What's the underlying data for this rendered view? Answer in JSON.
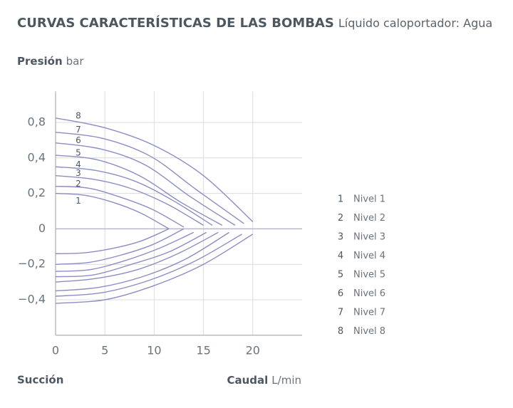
{
  "chart_data": {
    "type": "line",
    "title": "CURVAS CARACTERÍSTICAS DE LAS BOMBAS",
    "subtitle": "Líquido caloportador: Agua",
    "y_label": {
      "title": "Presión",
      "unit": "bar"
    },
    "x_label": {
      "title": "Caudal",
      "unit": "L/min"
    },
    "suction_label": "Succión",
    "xlim": [
      0,
      25
    ],
    "xticks": [
      0,
      5,
      10,
      15,
      20
    ],
    "ylim": [
      -0.6,
      1.15
    ],
    "yticks": [
      {
        "value": 0.8,
        "label": "0,8"
      },
      {
        "value": 0.4,
        "label": "0,4"
      },
      {
        "value": 0.2,
        "label": "0,2"
      },
      0,
      {
        "value": -0.2,
        "label": "−0,2"
      },
      {
        "value": -0.4,
        "label": "−0,4"
      }
    ],
    "grid": true,
    "legend": "right",
    "series": [
      {
        "name": "Nivel 1",
        "label": "1",
        "color": "#8b8ec4",
        "x": [
          0,
          2.9,
          5.8,
          8.6,
          11.5
        ],
        "values": [
          0.2,
          0.19,
          0.15,
          0.09,
          0
        ],
        "suction_x": [
          0,
          2.9,
          5.8,
          8.6,
          11.5
        ],
        "suction_values": [
          -0.14,
          -0.135,
          -0.11,
          -0.07,
          0
        ]
      },
      {
        "name": "Nivel 2",
        "label": "2",
        "color": "#8b8ec4",
        "x": [
          0,
          3.3,
          6.5,
          9.8,
          13
        ],
        "values": [
          0.24,
          0.23,
          0.18,
          0.11,
          0.01
        ],
        "suction_x": [
          0,
          3.3,
          6.5,
          9.8,
          13
        ],
        "suction_values": [
          -0.2,
          -0.19,
          -0.15,
          -0.09,
          0
        ]
      },
      {
        "name": "Nivel 3",
        "label": "3",
        "color": "#8b8ec4",
        "x": [
          0,
          3.8,
          7.5,
          11.3,
          15
        ],
        "values": [
          0.3,
          0.28,
          0.23,
          0.14,
          0.02
        ],
        "suction_x": [
          0,
          3.5,
          7,
          10.5,
          14
        ],
        "suction_values": [
          -0.24,
          -0.23,
          -0.18,
          -0.11,
          -0.02
        ]
      },
      {
        "name": "Nivel 4",
        "label": "4",
        "color": "#8b8ec4",
        "x": [
          0,
          4,
          8,
          11.9,
          15.9
        ],
        "values": [
          0.35,
          0.33,
          0.27,
          0.16,
          0.02
        ],
        "suction_x": [
          0,
          3.8,
          7.7,
          11.5,
          15.3
        ],
        "suction_values": [
          -0.27,
          -0.26,
          -0.2,
          -0.13,
          -0.02
        ]
      },
      {
        "name": "Nivel 5",
        "label": "5",
        "color": "#8b8ec4",
        "x": [
          0,
          4.2,
          8.5,
          12.7,
          16.9
        ],
        "values": [
          0.43,
          0.39,
          0.3,
          0.15,
          0.02
        ],
        "suction_x": [
          0,
          4.1,
          8.3,
          12.4,
          16.5
        ],
        "suction_values": [
          -0.3,
          -0.28,
          -0.23,
          -0.14,
          -0.02
        ]
      },
      {
        "name": "Nivel 6",
        "label": "6",
        "color": "#8b8ec4",
        "x": [
          0,
          4.6,
          9.1,
          13.7,
          18.2
        ],
        "values": [
          0.57,
          0.5,
          0.36,
          0.18,
          0.02
        ],
        "suction_x": [
          0,
          4.4,
          8.8,
          13.2,
          17.6
        ],
        "suction_values": [
          -0.35,
          -0.33,
          -0.27,
          -0.17,
          -0.02
        ]
      },
      {
        "name": "Nivel 7",
        "label": "7",
        "color": "#8b8ec4",
        "x": [
          0,
          4.8,
          9.6,
          14.3,
          19.1
        ],
        "values": [
          0.69,
          0.62,
          0.42,
          0.22,
          0.03
        ],
        "suction_x": [
          0,
          4.7,
          9.5,
          14.2,
          18.9
        ],
        "suction_values": [
          -0.38,
          -0.36,
          -0.29,
          -0.18,
          -0.03
        ]
      },
      {
        "name": "Nivel 8",
        "label": "8",
        "color": "#8b8ec4",
        "x": [
          0,
          5,
          10,
          15,
          20
        ],
        "values": [
          0.85,
          0.74,
          0.54,
          0.3,
          0.04
        ],
        "suction_x": [
          0,
          5,
          10,
          15,
          20
        ],
        "suction_values": [
          -0.42,
          -0.4,
          -0.32,
          -0.2,
          -0.03
        ]
      }
    ]
  }
}
